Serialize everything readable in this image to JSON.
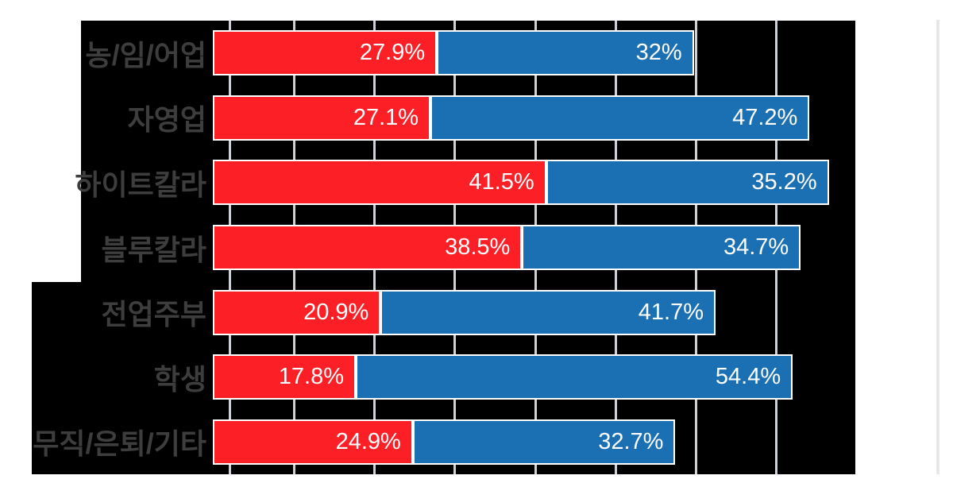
{
  "chart_data": {
    "type": "bar",
    "orientation": "horizontal",
    "stacked": true,
    "title": "",
    "xlabel": "",
    "ylabel": "",
    "xlim": [
      0,
      80
    ],
    "grid": true,
    "gridline_values": [
      2,
      10,
      20,
      30,
      40,
      50,
      60,
      70
    ],
    "legend": false,
    "categories": [
      "농/임/어업",
      "자영업",
      "하이트칼라",
      "블루칼라",
      "전업주부",
      "학생",
      "무직/은퇴/기타"
    ],
    "series": [
      {
        "name": "red",
        "color_key": "red_series",
        "values": [
          27.9,
          27.1,
          41.5,
          38.5,
          20.9,
          17.8,
          24.9
        ],
        "labels": [
          "27.9%",
          "27.1%",
          "41.5%",
          "38.5%",
          "20.9%",
          "17.8%",
          "24.9%"
        ]
      },
      {
        "name": "blue",
        "color_key": "blue_series",
        "values": [
          32,
          47.2,
          35.2,
          34.7,
          41.7,
          54.4,
          32.7
        ],
        "labels": [
          "32%",
          "47.2%",
          "35.2%",
          "34.7%",
          "41.7%",
          "54.4%",
          "32.7%"
        ]
      }
    ]
  },
  "colors": {
    "page_background": "#ffffff",
    "plot_background": "#000000",
    "red_series": "#fd1f26",
    "blue_series": "#1b70b4",
    "gridline": "#cdd1d6",
    "bar_border": "#ffffff",
    "category_label": "#3d3d3d",
    "value_label": "#ffffff",
    "scrollbar": "#e7e7e7"
  }
}
